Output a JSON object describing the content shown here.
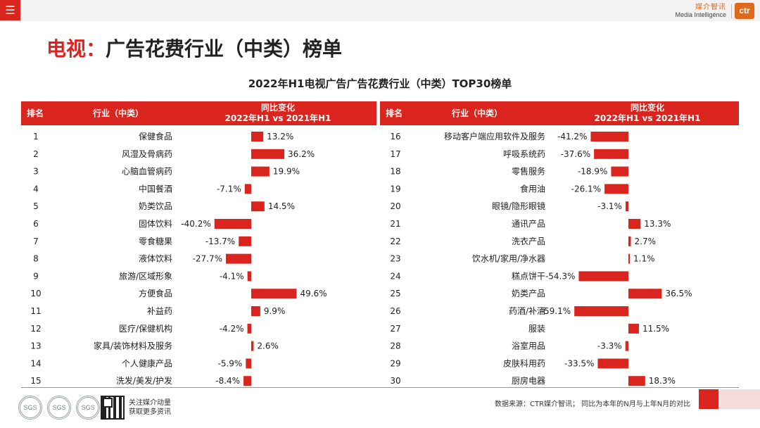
{
  "page_title": {
    "accent": "电视：",
    "main": "广告花费行业（中类）榜单"
  },
  "chart_title": "2022年H1电视广告广告花费行业（中类）TOP30榜单",
  "brand": {
    "name_cn": "媒介智讯",
    "name_en": "Media Intelligence",
    "logo": "ctr",
    "color": "#e06a1c"
  },
  "menu_icon": "hamburger-icon",
  "header": {
    "rank": "排名",
    "industry": "行业（中类）",
    "yoy_line1": "同比变化",
    "yoy_line2": "2022年H1 vs 2021年H1"
  },
  "colors": {
    "accent": "#d9251d",
    "bar": "#d9251d"
  },
  "chart_data": {
    "type": "bar",
    "orientation": "horizontal",
    "title": "2022年H1电视广告广告花费行业（中类）TOP30榜单",
    "value_label": "同比变化 2022年H1 vs 2021年H1",
    "unit": "%",
    "rows": [
      {
        "rank": "1",
        "industry": "保健食品",
        "value": 13.2
      },
      {
        "rank": "2",
        "industry": "风湿及骨病药",
        "value": 36.2
      },
      {
        "rank": "3",
        "industry": "心脑血管病药",
        "value": 19.9
      },
      {
        "rank": "4",
        "industry": "中国餐酒",
        "value": -7.1
      },
      {
        "rank": "5",
        "industry": "奶类饮品",
        "value": 14.5
      },
      {
        "rank": "6",
        "industry": "固体饮料",
        "value": -40.2
      },
      {
        "rank": "7",
        "industry": "零食糖果",
        "value": -13.7
      },
      {
        "rank": "8",
        "industry": "液体饮料",
        "value": -27.7
      },
      {
        "rank": "9",
        "industry": "旅游/区域形象",
        "value": -4.1
      },
      {
        "rank": "10",
        "industry": "方便食品",
        "value": 49.6
      },
      {
        "rank": "11",
        "industry": "补益药",
        "value": 9.9
      },
      {
        "rank": "12",
        "industry": "医疗/保健机构",
        "value": -4.2
      },
      {
        "rank": "13",
        "industry": "家具/装饰材料及服务",
        "value": 2.6
      },
      {
        "rank": "14",
        "industry": "个人健康产品",
        "value": -5.9
      },
      {
        "rank": "15",
        "industry": "洗发/美发/护发",
        "value": -8.4
      },
      {
        "rank": "16",
        "industry": "移动客户端应用软件及服务",
        "value": -41.2
      },
      {
        "rank": "17",
        "industry": "呼吸系统药",
        "value": -37.6
      },
      {
        "rank": "18",
        "industry": "零售服务",
        "value": -18.9
      },
      {
        "rank": "19",
        "industry": "食用油",
        "value": -26.1
      },
      {
        "rank": "20",
        "industry": "眼镜/隐形眼镜",
        "value": -3.1
      },
      {
        "rank": "21",
        "industry": "通讯产品",
        "value": 13.3
      },
      {
        "rank": "22",
        "industry": "洗衣产品",
        "value": 2.7
      },
      {
        "rank": "23",
        "industry": "饮水机/家用/净水器",
        "value": 1.1
      },
      {
        "rank": "24",
        "industry": "糕点饼干",
        "value": -54.3
      },
      {
        "rank": "25",
        "industry": "奶类产品",
        "value": 36.5
      },
      {
        "rank": "26",
        "industry": "药酒/补酒",
        "value": -59.1
      },
      {
        "rank": "27",
        "industry": "服装",
        "value": 11.5
      },
      {
        "rank": "28",
        "industry": "浴室用品",
        "value": -3.3
      },
      {
        "rank": "29",
        "industry": "皮肤科用药",
        "value": -33.5
      },
      {
        "rank": "30",
        "industry": "厨房电器",
        "value": 18.3
      }
    ]
  },
  "footer": {
    "badges": [
      "SGS",
      "SGS",
      "SGS"
    ],
    "follow_line1": "关注媒介动量",
    "follow_line2": "获取更多资讯",
    "source": "数据来源：CTR媒介智讯；  同比为本年的N月与上年N月的对比"
  }
}
